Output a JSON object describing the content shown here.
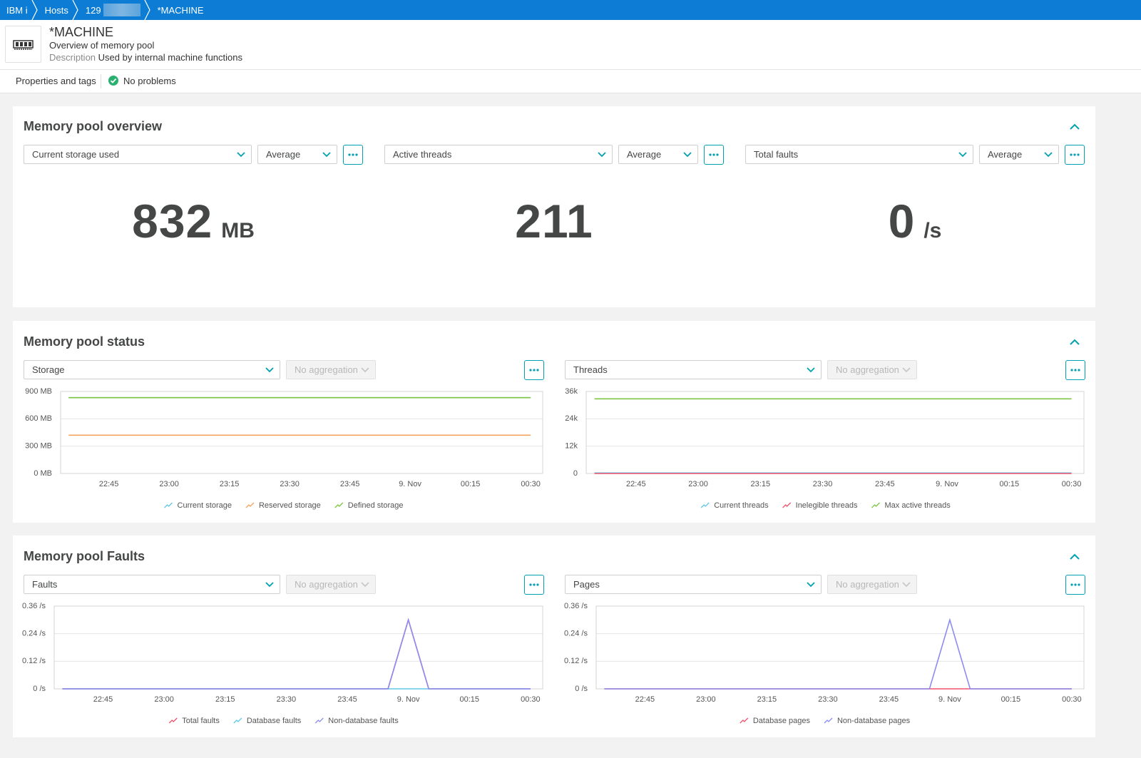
{
  "breadcrumb": [
    "IBM i",
    "Hosts",
    "129",
    "*MACHINE"
  ],
  "header": {
    "title": "*MACHINE",
    "subtitle": "Overview of memory pool",
    "description_label": "Description",
    "description": "Used by internal machine functions"
  },
  "tabs": [
    "Properties and tags",
    "No problems"
  ],
  "overview": {
    "title": "Memory pool overview",
    "tiles": [
      {
        "metric": "Current storage used",
        "aggregation": "Average",
        "value": 832,
        "unit": "MB"
      },
      {
        "metric": "Active threads",
        "aggregation": "Average",
        "value": 211
      },
      {
        "metric": "Total faults",
        "aggregation": "Average",
        "value": 0,
        "unit": "/s"
      }
    ]
  },
  "sections": [
    {
      "title": "Memory pool status"
    },
    {
      "title": "Memory pool Faults"
    }
  ],
  "chart_data": [
    {
      "type": "line",
      "metric": "Storage",
      "aggregation": "No aggregation",
      "grid": true,
      "categories": [
        null,
        null,
        "22:45",
        null,
        null,
        "23:00",
        null,
        null,
        "23:15",
        null,
        null,
        "23:30",
        null,
        null,
        "23:45",
        null,
        null,
        "9. Nov",
        null,
        null,
        "00:15",
        null,
        null,
        "00:30"
      ],
      "ylim": [
        0,
        900
      ],
      "yticks": [
        {
          "value": 0,
          "label": "0 MB"
        },
        {
          "value": 300,
          "label": "300 MB"
        },
        {
          "value": 600,
          "label": "600 MB"
        },
        {
          "value": 900,
          "label": "900 MB"
        }
      ],
      "series": [
        {
          "name": "Current storage",
          "color": "#5ec8e5",
          "values": [
            832,
            832,
            832,
            832,
            832,
            832,
            832,
            832,
            832,
            832,
            832,
            832,
            832,
            832,
            832,
            832,
            832,
            832,
            832,
            832,
            832,
            832,
            832,
            832
          ]
        },
        {
          "name": "Reserved storage",
          "color": "#f5a35c",
          "values": [
            420,
            420,
            420,
            420,
            420,
            420,
            420,
            420,
            420,
            420,
            420,
            420,
            420,
            420,
            420,
            420,
            420,
            420,
            420,
            420,
            420,
            420,
            420,
            420
          ]
        },
        {
          "name": "Defined storage",
          "color": "#7dc540",
          "values": [
            832,
            832,
            832,
            832,
            832,
            832,
            832,
            832,
            832,
            832,
            832,
            832,
            832,
            832,
            832,
            832,
            832,
            832,
            832,
            832,
            832,
            832,
            832,
            832
          ]
        }
      ]
    },
    {
      "type": "line",
      "metric": "Threads",
      "aggregation": "No aggregation",
      "grid": true,
      "categories": [
        null,
        null,
        "22:45",
        null,
        null,
        "23:00",
        null,
        null,
        "23:15",
        null,
        null,
        "23:30",
        null,
        null,
        "23:45",
        null,
        null,
        "9. Nov",
        null,
        null,
        "00:15",
        null,
        null,
        "00:30"
      ],
      "ylim": [
        0,
        36000
      ],
      "yticks": [
        0,
        {
          "value": 12000,
          "label": "12k"
        },
        {
          "value": 24000,
          "label": "24k"
        },
        {
          "value": 36000,
          "label": "36k"
        }
      ],
      "series": [
        {
          "name": "Current threads",
          "color": "#5ec8e5",
          "values": [
            211,
            211,
            211,
            211,
            211,
            211,
            211,
            211,
            211,
            211,
            211,
            211,
            211,
            211,
            211,
            211,
            211,
            211,
            211,
            211,
            211,
            211,
            211,
            211
          ]
        },
        {
          "name": "Inelegible threads",
          "color": "#f2506b",
          "values": [
            0,
            0,
            0,
            0,
            0,
            0,
            0,
            0,
            0,
            0,
            0,
            0,
            0,
            0,
            0,
            0,
            0,
            0,
            0,
            0,
            0,
            0,
            0,
            0
          ]
        },
        {
          "name": "Max active threads",
          "color": "#7dc540",
          "values": [
            32767,
            32767,
            32767,
            32767,
            32767,
            32767,
            32767,
            32767,
            32767,
            32767,
            32767,
            32767,
            32767,
            32767,
            32767,
            32767,
            32767,
            32767,
            32767,
            32767,
            32767,
            32767,
            32767,
            32767
          ]
        }
      ]
    },
    {
      "type": "line",
      "metric": "Faults",
      "aggregation": "No aggregation",
      "grid": true,
      "categories": [
        null,
        null,
        "22:45",
        null,
        null,
        "23:00",
        null,
        null,
        "23:15",
        null,
        null,
        "23:30",
        null,
        null,
        "23:45",
        null,
        null,
        "9. Nov",
        null,
        null,
        "00:15",
        null,
        null,
        "00:30"
      ],
      "ylim": [
        0,
        0.36
      ],
      "yticks": [
        {
          "value": 0,
          "label": "0 /s"
        },
        {
          "value": 0.12,
          "label": "0.12 /s"
        },
        {
          "value": 0.24,
          "label": "0.24 /s"
        },
        {
          "value": 0.36,
          "label": "0.36 /s"
        }
      ],
      "series": [
        {
          "name": "Total faults",
          "color": "#f2506b",
          "values": [
            0,
            0,
            0,
            0,
            0,
            0,
            0,
            0,
            0,
            0,
            0,
            0,
            0,
            0,
            0,
            0,
            0,
            0.3,
            0,
            0,
            0,
            0,
            0,
            0
          ]
        },
        {
          "name": "Database faults",
          "color": "#5ec8e5",
          "values": [
            0,
            0,
            0,
            0,
            0,
            0,
            0,
            0,
            0,
            0,
            0,
            0,
            0,
            0,
            0,
            0,
            0,
            0,
            0,
            0,
            0,
            0,
            0,
            0
          ]
        },
        {
          "name": "Non-database faults",
          "color": "#8c8cf0",
          "values": [
            0,
            0,
            0,
            0,
            0,
            0,
            0,
            0,
            0,
            0,
            0,
            0,
            0,
            0,
            0,
            0,
            0,
            0.3,
            0,
            0,
            0,
            0,
            0,
            0
          ]
        }
      ]
    },
    {
      "type": "line",
      "metric": "Pages",
      "aggregation": "No aggregation",
      "grid": true,
      "categories": [
        null,
        null,
        "22:45",
        null,
        null,
        "23:00",
        null,
        null,
        "23:15",
        null,
        null,
        "23:30",
        null,
        null,
        "23:45",
        null,
        null,
        "9. Nov",
        null,
        null,
        "00:15",
        null,
        null,
        "00:30"
      ],
      "ylim": [
        0,
        0.36
      ],
      "yticks": [
        {
          "value": 0,
          "label": "0 /s"
        },
        {
          "value": 0.12,
          "label": "0.12 /s"
        },
        {
          "value": 0.24,
          "label": "0.24 /s"
        },
        {
          "value": 0.36,
          "label": "0.36 /s"
        }
      ],
      "series": [
        {
          "name": "Database pages",
          "color": "#f2506b",
          "values": [
            0,
            0,
            0,
            0,
            0,
            0,
            0,
            0,
            0,
            0,
            0,
            0,
            0,
            0,
            0,
            0,
            0,
            0,
            0,
            0,
            0,
            0,
            0,
            0
          ]
        },
        {
          "name": "Non-database pages",
          "color": "#8c8cf0",
          "values": [
            0,
            0,
            0,
            0,
            0,
            0,
            0,
            0,
            0,
            0,
            0,
            0,
            0,
            0,
            0,
            0,
            0,
            0.3,
            0,
            0,
            0,
            0,
            0,
            0
          ]
        }
      ]
    }
  ]
}
